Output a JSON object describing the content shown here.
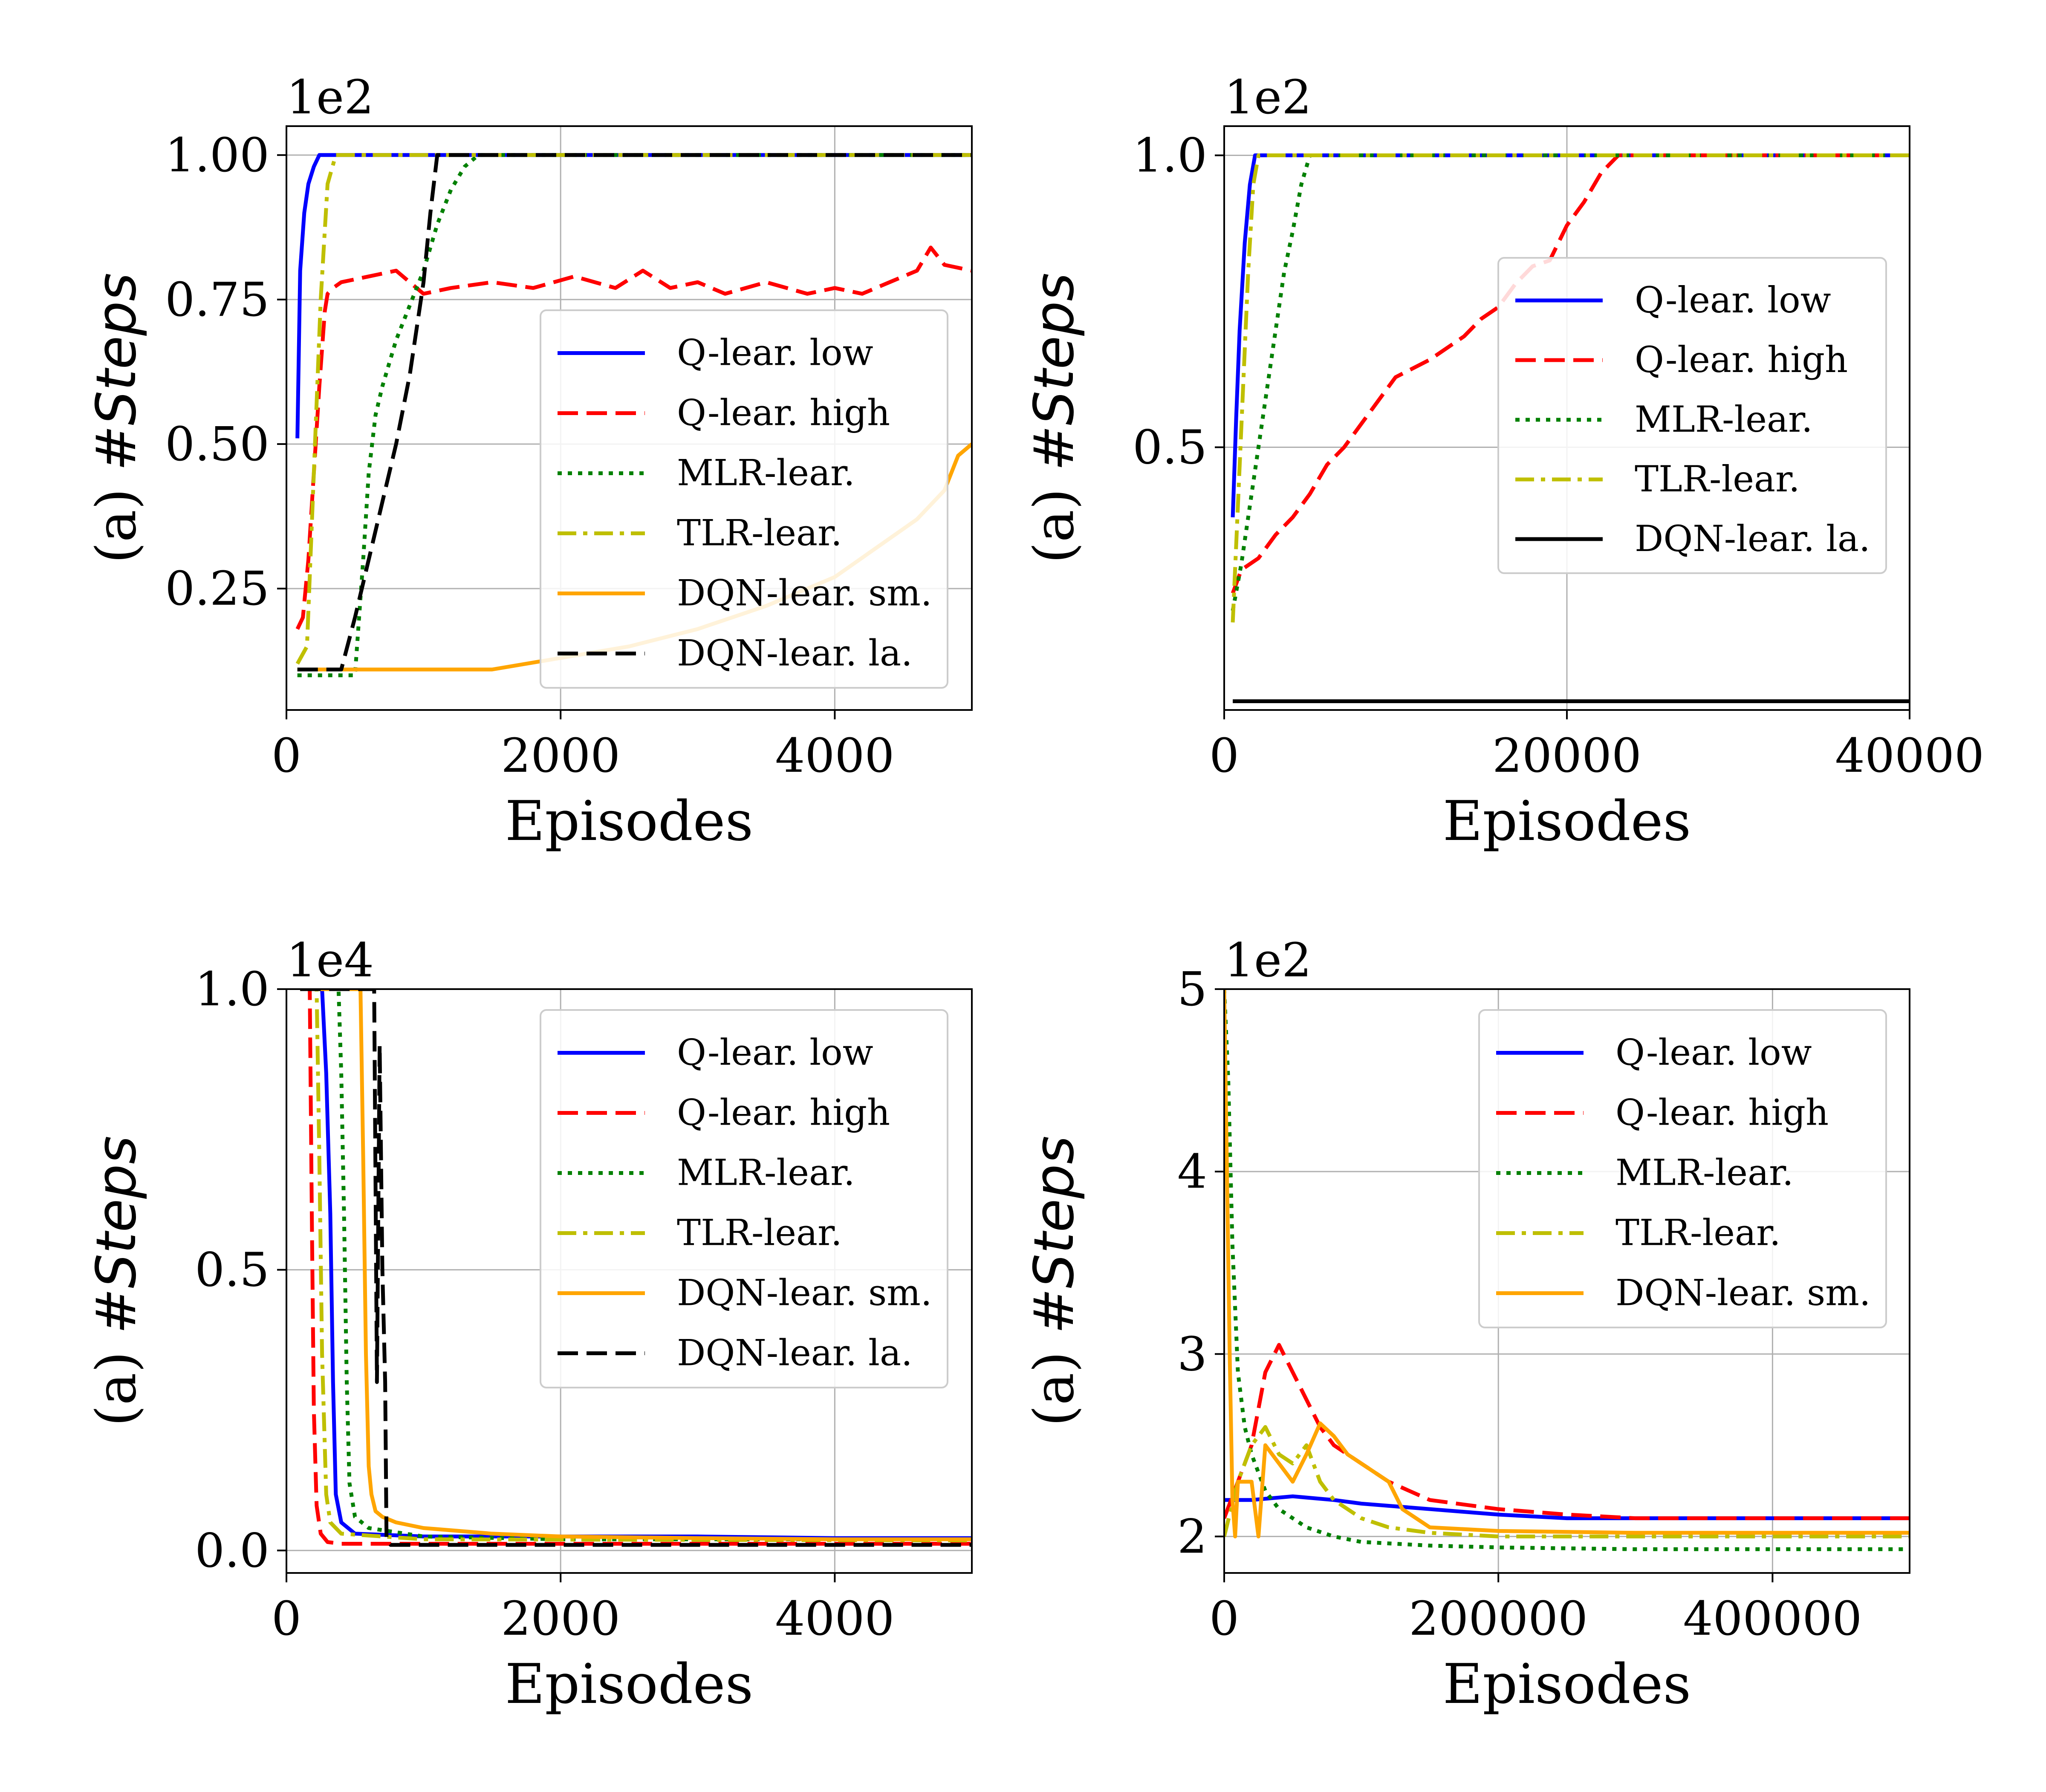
{
  "chart_data": [
    {
      "type": "line",
      "ylabel_prefix": "(a) ",
      "ylabel_var": "#Steps",
      "xlabel": "Episodes",
      "exponent": "1e2",
      "xlim": [
        0,
        5000
      ],
      "ylim": [
        0.04,
        1.05
      ],
      "xticks": [
        0,
        2000,
        4000
      ],
      "xtick_labels": [
        "0",
        "2000",
        "4000"
      ],
      "yticks": [
        0.25,
        0.5,
        0.75,
        1.0
      ],
      "ytick_labels": [
        "0.25",
        "0.50",
        "0.75",
        "1.00"
      ],
      "grid": true,
      "legend_position": "center-right",
      "series": [
        {
          "name": "Q-lear. low",
          "color": "#0000ff",
          "dash": "solid",
          "x": [
            80,
            100,
            130,
            160,
            200,
            240,
            280,
            320,
            5000
          ],
          "y": [
            0.51,
            0.8,
            0.9,
            0.95,
            0.98,
            1.0,
            1.0,
            1.0,
            1.0
          ]
        },
        {
          "name": "Q-lear. high",
          "color": "#ff0000",
          "dash": "dashed",
          "x": [
            80,
            120,
            160,
            200,
            240,
            280,
            300,
            340,
            400,
            600,
            800,
            1000,
            1200,
            1500,
            1800,
            2100,
            2400,
            2600,
            2800,
            3000,
            3200,
            3500,
            3800,
            4000,
            4200,
            4400,
            4600,
            4700,
            4800,
            5000
          ],
          "y": [
            0.18,
            0.2,
            0.3,
            0.45,
            0.6,
            0.73,
            0.76,
            0.77,
            0.78,
            0.79,
            0.8,
            0.76,
            0.77,
            0.78,
            0.77,
            0.79,
            0.77,
            0.8,
            0.77,
            0.78,
            0.76,
            0.78,
            0.76,
            0.77,
            0.76,
            0.78,
            0.8,
            0.84,
            0.81,
            0.8
          ]
        },
        {
          "name": "MLR-lear.",
          "color": "#008000",
          "dash": "dotted",
          "x": [
            80,
            500,
            560,
            600,
            650,
            700,
            800,
            900,
            1000,
            1100,
            1200,
            1300,
            1400,
            5000
          ],
          "y": [
            0.1,
            0.1,
            0.3,
            0.45,
            0.55,
            0.6,
            0.68,
            0.74,
            0.8,
            0.88,
            0.94,
            0.98,
            1.0,
            1.0
          ]
        },
        {
          "name": "TLR-lear.",
          "color": "#bfbf00",
          "dash": "dashdot",
          "x": [
            80,
            150,
            200,
            250,
            300,
            360,
            5000
          ],
          "y": [
            0.12,
            0.15,
            0.45,
            0.75,
            0.95,
            1.0,
            1.0
          ]
        },
        {
          "name": "DQN-lear. sm.",
          "color": "#ffa500",
          "dash": "solid",
          "x": [
            80,
            600,
            1000,
            1500,
            2000,
            2500,
            3000,
            3500,
            4000,
            4300,
            4600,
            4800,
            4900,
            5000
          ],
          "y": [
            0.11,
            0.11,
            0.11,
            0.11,
            0.13,
            0.15,
            0.18,
            0.22,
            0.27,
            0.32,
            0.37,
            0.42,
            0.48,
            0.5
          ]
        },
        {
          "name": "DQN-lear. la.",
          "color": "#000000",
          "dash": "dashed",
          "x": [
            80,
            400,
            500,
            600,
            700,
            800,
            900,
            1000,
            1050,
            1100,
            5000
          ],
          "y": [
            0.11,
            0.11,
            0.2,
            0.3,
            0.4,
            0.5,
            0.62,
            0.78,
            0.9,
            1.0,
            1.0
          ]
        }
      ]
    },
    {
      "type": "line",
      "ylabel_prefix": "(a) ",
      "ylabel_var": "#Steps",
      "xlabel": "Episodes",
      "exponent": "1e2",
      "xlim": [
        0,
        40000
      ],
      "ylim": [
        0.05,
        1.05
      ],
      "xticks": [
        0,
        20000,
        40000
      ],
      "xtick_labels": [
        "0",
        "20000",
        "40000"
      ],
      "yticks": [
        0.5,
        1.0
      ],
      "ytick_labels": [
        "0.5",
        "1.0"
      ],
      "grid": true,
      "legend_position": "upper-right",
      "series": [
        {
          "name": "Q-lear. low",
          "color": "#0000ff",
          "dash": "solid",
          "x": [
            500,
            700,
            900,
            1200,
            1500,
            1800,
            2200,
            40000
          ],
          "y": [
            0.38,
            0.55,
            0.7,
            0.85,
            0.95,
            1.0,
            1.0,
            1.0
          ]
        },
        {
          "name": "Q-lear. high",
          "color": "#ff0000",
          "dash": "dashed",
          "x": [
            500,
            1000,
            2000,
            3000,
            4000,
            5000,
            6000,
            7000,
            8000,
            9000,
            10000,
            12000,
            14000,
            15000,
            16000,
            17000,
            18000,
            19000,
            20000,
            21000,
            22000,
            23000,
            40000
          ],
          "y": [
            0.25,
            0.29,
            0.31,
            0.35,
            0.38,
            0.42,
            0.47,
            0.5,
            0.54,
            0.58,
            0.62,
            0.65,
            0.69,
            0.72,
            0.74,
            0.78,
            0.81,
            0.82,
            0.88,
            0.92,
            0.97,
            1.0,
            1.0
          ]
        },
        {
          "name": "MLR-lear.",
          "color": "#008000",
          "dash": "dotted",
          "x": [
            500,
            1000,
            1500,
            2000,
            2500,
            3000,
            3500,
            4000,
            4500,
            5000,
            40000
          ],
          "y": [
            0.22,
            0.3,
            0.4,
            0.5,
            0.6,
            0.7,
            0.8,
            0.87,
            0.95,
            1.0,
            1.0
          ]
        },
        {
          "name": "TLR-lear.",
          "color": "#bfbf00",
          "dash": "dashdot",
          "x": [
            500,
            800,
            1100,
            1400,
            1700,
            2000,
            40000
          ],
          "y": [
            0.2,
            0.4,
            0.6,
            0.8,
            0.95,
            1.0,
            1.0
          ]
        },
        {
          "name": "DQN-lear. la.",
          "color": "#000000",
          "dash": "solid",
          "x": [
            500,
            40000
          ],
          "y": [
            0.065,
            0.065
          ]
        }
      ]
    },
    {
      "type": "line",
      "ylabel_prefix": "(a) ",
      "ylabel_var": "#Steps",
      "xlabel": "Episodes",
      "exponent": "1e4",
      "xlim": [
        0,
        5000
      ],
      "ylim": [
        -0.04,
        1.0
      ],
      "xticks": [
        0,
        2000,
        4000
      ],
      "xtick_labels": [
        "0",
        "2000",
        "4000"
      ],
      "yticks": [
        0.0,
        0.5,
        1.0
      ],
      "ytick_labels": [
        "0.0",
        "0.5",
        "1.0"
      ],
      "grid": true,
      "legend_position": "upper-right",
      "series": [
        {
          "name": "Q-lear. low",
          "color": "#0000ff",
          "dash": "solid",
          "x": [
            100,
            260,
            290,
            320,
            340,
            360,
            400,
            500,
            1000,
            2000,
            3000,
            4000,
            5000
          ],
          "y": [
            1.0,
            1.0,
            0.85,
            0.6,
            0.3,
            0.1,
            0.05,
            0.03,
            0.025,
            0.025,
            0.025,
            0.022,
            0.022
          ]
        },
        {
          "name": "Q-lear. high",
          "color": "#ff0000",
          "dash": "dashed",
          "x": [
            100,
            170,
            185,
            200,
            220,
            250,
            300,
            400,
            1000,
            5000
          ],
          "y": [
            1.0,
            1.0,
            0.6,
            0.25,
            0.08,
            0.03,
            0.015,
            0.012,
            0.012,
            0.012
          ]
        },
        {
          "name": "MLR-lear.",
          "color": "#008000",
          "dash": "dotted",
          "x": [
            100,
            380,
            400,
            420,
            440,
            460,
            500,
            600,
            1000,
            2000,
            5000
          ],
          "y": [
            1.0,
            1.0,
            0.85,
            0.6,
            0.3,
            0.12,
            0.06,
            0.04,
            0.025,
            0.02,
            0.02
          ]
        },
        {
          "name": "TLR-lear.",
          "color": "#bfbf00",
          "dash": "dashdot",
          "x": [
            100,
            220,
            240,
            260,
            290,
            320,
            400,
            1000,
            5000
          ],
          "y": [
            1.0,
            1.0,
            0.7,
            0.35,
            0.1,
            0.05,
            0.03,
            0.02,
            0.018
          ]
        },
        {
          "name": "DQN-lear. sm.",
          "color": "#ffa500",
          "dash": "solid",
          "x": [
            100,
            540,
            560,
            580,
            600,
            620,
            650,
            700,
            800,
            1000,
            1500,
            2000,
            3000,
            4000,
            5000
          ],
          "y": [
            1.0,
            1.0,
            0.7,
            0.35,
            0.15,
            0.1,
            0.07,
            0.06,
            0.05,
            0.04,
            0.03,
            0.025,
            0.022,
            0.02,
            0.02
          ]
        },
        {
          "name": "DQN-lear. la.",
          "color": "#000000",
          "dash": "dashed",
          "x": [
            100,
            640,
            660,
            680,
            700,
            720,
            730,
            760,
            1000,
            5000
          ],
          "y": [
            1.0,
            1.0,
            0.3,
            0.9,
            0.5,
            0.3,
            0.02,
            0.01,
            0.01,
            0.01
          ]
        }
      ]
    },
    {
      "type": "line",
      "ylabel_prefix": "(a) ",
      "ylabel_var": "#Steps",
      "xlabel": "Episodes",
      "exponent": "1e2",
      "xlim": [
        0,
        500000
      ],
      "ylim": [
        1.8,
        5.0
      ],
      "xticks": [
        0,
        200000,
        400000
      ],
      "xtick_labels": [
        "0",
        "200000",
        "400000"
      ],
      "yticks": [
        2,
        3,
        4,
        5
      ],
      "ytick_labels": [
        "2",
        "3",
        "4",
        "5"
      ],
      "grid": true,
      "legend_position": "upper-right",
      "series": [
        {
          "name": "Q-lear. low",
          "color": "#0000ff",
          "dash": "solid",
          "x": [
            0,
            20000,
            50000,
            80000,
            100000,
            150000,
            200000,
            250000,
            300000,
            400000,
            500000
          ],
          "y": [
            2.2,
            2.2,
            2.22,
            2.2,
            2.18,
            2.15,
            2.12,
            2.1,
            2.1,
            2.1,
            2.1
          ]
        },
        {
          "name": "Q-lear. high",
          "color": "#ff0000",
          "dash": "dashed",
          "x": [
            0,
            10000,
            20000,
            30000,
            40000,
            50000,
            60000,
            70000,
            80000,
            100000,
            120000,
            150000,
            200000,
            250000,
            300000,
            400000,
            500000
          ],
          "y": [
            2.1,
            2.3,
            2.5,
            2.9,
            3.05,
            2.9,
            2.75,
            2.6,
            2.5,
            2.4,
            2.3,
            2.2,
            2.15,
            2.12,
            2.1,
            2.1,
            2.1
          ]
        },
        {
          "name": "MLR-lear.",
          "color": "#008000",
          "dash": "dotted",
          "x": [
            0,
            3000,
            6000,
            10000,
            15000,
            20000,
            30000,
            40000,
            60000,
            80000,
            100000,
            150000,
            200000,
            300000,
            400000,
            500000
          ],
          "y": [
            5.0,
            4.5,
            3.6,
            2.9,
            2.6,
            2.45,
            2.25,
            2.15,
            2.05,
            2.0,
            1.97,
            1.95,
            1.94,
            1.93,
            1.93,
            1.93
          ]
        },
        {
          "name": "TLR-lear.",
          "color": "#bfbf00",
          "dash": "dashdot",
          "x": [
            0,
            10000,
            20000,
            30000,
            40000,
            50000,
            60000,
            70000,
            80000,
            100000,
            120000,
            150000,
            200000,
            300000,
            500000
          ],
          "y": [
            2.0,
            2.3,
            2.5,
            2.6,
            2.45,
            2.4,
            2.5,
            2.3,
            2.2,
            2.1,
            2.05,
            2.02,
            2.0,
            2.0,
            2.0
          ]
        },
        {
          "name": "DQN-lear. sm.",
          "color": "#ffa500",
          "dash": "solid",
          "x": [
            0,
            4000,
            6000,
            8000,
            10000,
            20000,
            25000,
            30000,
            40000,
            50000,
            60000,
            70000,
            80000,
            90000,
            100000,
            110000,
            120000,
            130000,
            150000,
            200000,
            300000,
            500000
          ],
          "y": [
            5.0,
            3.0,
            2.2,
            2.0,
            2.3,
            2.3,
            2.0,
            2.5,
            2.4,
            2.3,
            2.45,
            2.62,
            2.55,
            2.45,
            2.4,
            2.35,
            2.3,
            2.15,
            2.05,
            2.03,
            2.02,
            2.02
          ]
        }
      ]
    }
  ]
}
